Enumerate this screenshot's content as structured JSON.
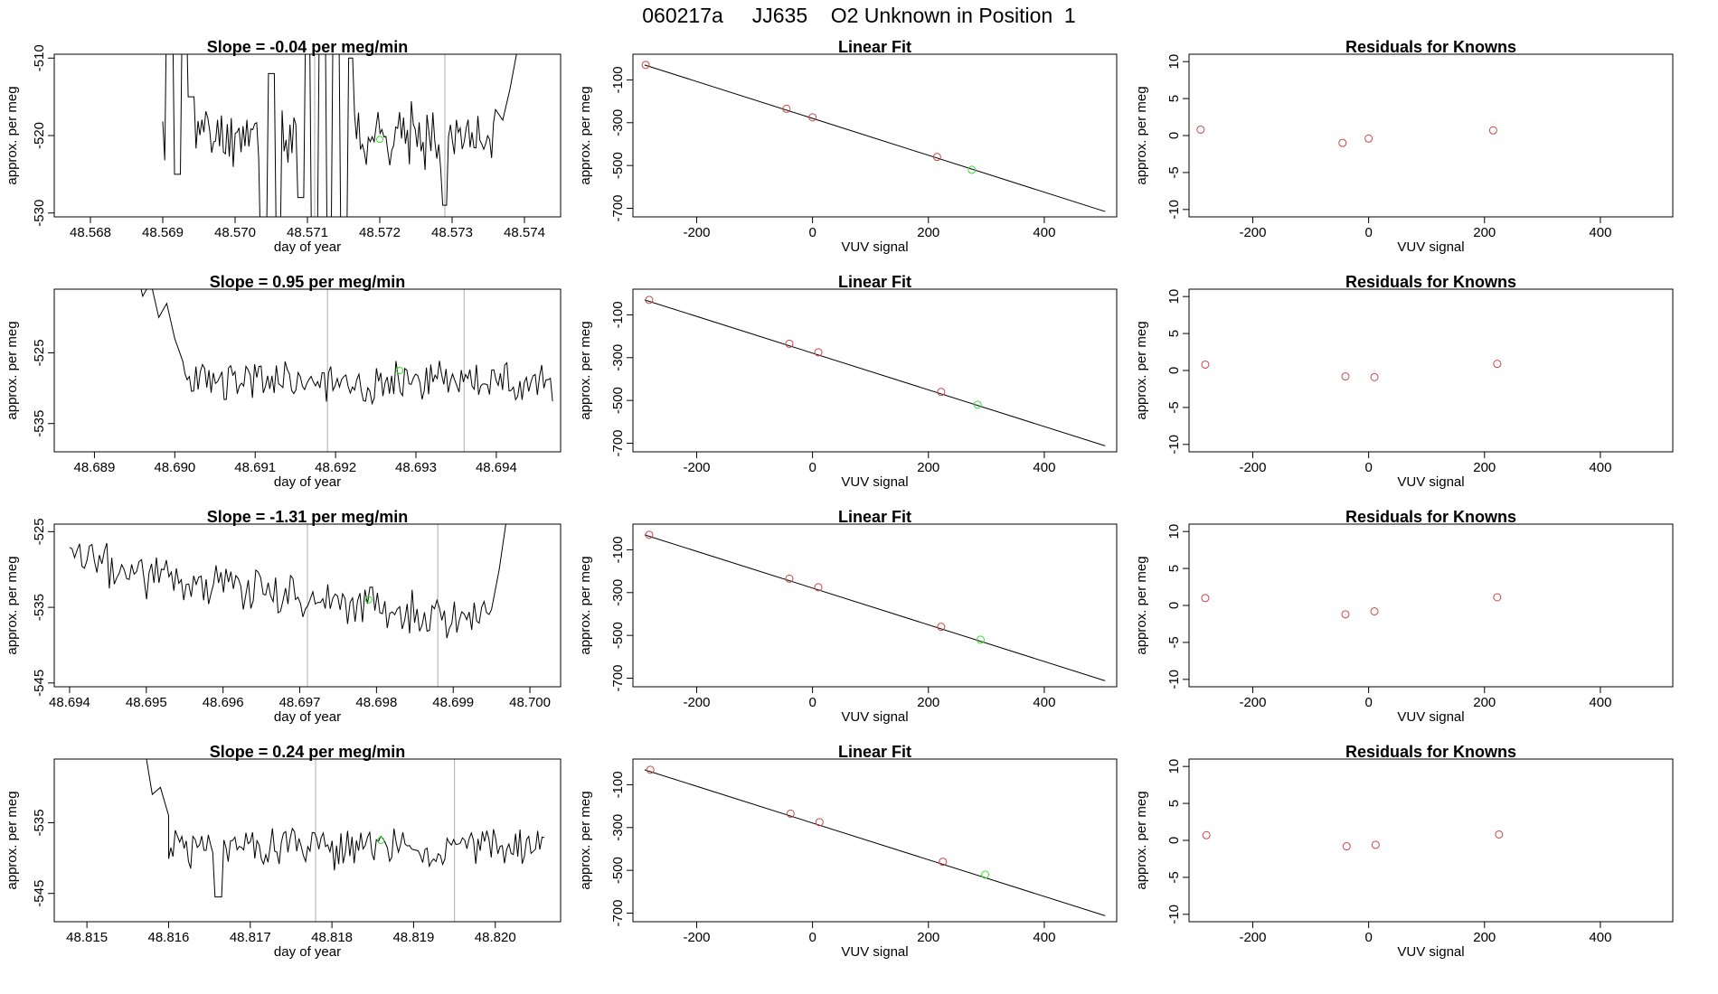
{
  "title": "060217a     JJ635    O2 Unknown in Position  1",
  "colors": {
    "line": "#000000",
    "known": "#cc4444",
    "unknown": "#33dd33",
    "vline": "#bbbbbb",
    "frame": "#000000"
  },
  "chart_data": [
    {
      "row": 1,
      "time_series": {
        "type": "line",
        "title": "Slope =  -0.04  per meg/min",
        "xlabel": "day of year",
        "ylabel": "approx. per meg",
        "xlim": [
          48.5675,
          48.5745
        ],
        "ylim": [
          -530.5,
          -509.5
        ],
        "xticks": [
          "48.568",
          "48.569",
          "48.570",
          "48.571",
          "48.572",
          "48.573",
          "48.574"
        ],
        "yticks": [
          "-510",
          "-520",
          "-530"
        ],
        "vlines": [
          48.5711,
          48.5729
        ],
        "start": 48.569,
        "end": 48.5736,
        "level": -520,
        "noise": 3,
        "seed": 11,
        "spikes": [
          [
            48.5691,
            -503
          ],
          [
            48.5692,
            -525
          ],
          [
            48.5693,
            -503
          ],
          [
            48.5694,
            -515
          ],
          [
            48.5704,
            -535
          ],
          [
            48.5705,
            -512
          ],
          [
            48.5706,
            -535
          ],
          [
            48.5709,
            -528
          ],
          [
            48.571,
            -505
          ],
          [
            48.5711,
            -535
          ],
          [
            48.5712,
            -504
          ],
          [
            48.5713,
            -535
          ],
          [
            48.5714,
            -505
          ],
          [
            48.5715,
            -535
          ],
          [
            48.5716,
            -510
          ],
          [
            48.5729,
            -529
          ]
        ],
        "tail": [
          [
            48.5737,
            -518
          ],
          [
            48.5738,
            -514
          ],
          [
            48.5739,
            -509
          ]
        ],
        "point": [
          48.572,
          -520.5
        ]
      },
      "linear_fit": {
        "type": "scatter",
        "title": "Linear Fit",
        "xlabel": "VUV signal",
        "ylabel": "approx. per meg",
        "xlim": [
          -310,
          525
        ],
        "ylim": [
          -740,
          20
        ],
        "xticks": [
          -200,
          0,
          200,
          400
        ],
        "yticks": [
          -100,
          -300,
          -500,
          -700
        ],
        "fit_line": [
          [
            -290,
            -30
          ],
          [
            505,
            -715
          ]
        ],
        "knowns": [
          [
            -288,
            -30
          ],
          [
            -45,
            -235
          ],
          [
            0,
            -275
          ],
          [
            215,
            -460
          ]
        ],
        "unknown": [
          [
            275,
            -520
          ]
        ]
      },
      "residuals": {
        "type": "scatter",
        "title": "Residuals for Knowns",
        "xlabel": "VUV signal",
        "ylabel": "approx. per meg",
        "xlim": [
          -310,
          525
        ],
        "ylim": [
          -11,
          11
        ],
        "xticks": [
          -200,
          0,
          200,
          400
        ],
        "yticks": [
          10,
          5,
          0,
          -5,
          -10
        ],
        "points": [
          [
            -290,
            0.8
          ],
          [
            -45,
            -1.0
          ],
          [
            0,
            -0.4
          ],
          [
            215,
            0.7
          ]
        ]
      }
    },
    {
      "row": 2,
      "time_series": {
        "type": "line",
        "title": "Slope =  0.95  per meg/min",
        "xlabel": "day of year",
        "ylabel": "approx. per meg",
        "xlim": [
          48.6885,
          48.6948
        ],
        "ylim": [
          -539,
          -516
        ],
        "xticks": [
          "48.689",
          "48.690",
          "48.691",
          "48.692",
          "48.693",
          "48.694"
        ],
        "yticks": [
          "-525",
          "-535"
        ],
        "vlines": [
          48.6919,
          48.6936
        ],
        "start": 48.6901,
        "end": 48.6947,
        "level": -529,
        "noise": 2.3,
        "seed": 23,
        "spikes": [],
        "tail": [],
        "head": [
          [
            48.6895,
            -512
          ],
          [
            48.6896,
            -517
          ],
          [
            48.6897,
            -515
          ],
          [
            48.6898,
            -520
          ],
          [
            48.6899,
            -518
          ],
          [
            48.69,
            -523
          ]
        ],
        "point": [
          48.6928,
          -527.5
        ]
      },
      "linear_fit": {
        "type": "scatter",
        "title": "Linear Fit",
        "xlabel": "VUV signal",
        "ylabel": "approx. per meg",
        "xlim": [
          -310,
          525
        ],
        "ylim": [
          -740,
          20
        ],
        "xticks": [
          -200,
          0,
          200,
          400
        ],
        "yticks": [
          -100,
          -300,
          -500,
          -700
        ],
        "fit_line": [
          [
            -290,
            -30
          ],
          [
            505,
            -712
          ]
        ],
        "knowns": [
          [
            -282,
            -30
          ],
          [
            -40,
            -235
          ],
          [
            10,
            -275
          ],
          [
            222,
            -460
          ]
        ],
        "unknown": [
          [
            285,
            -520
          ]
        ]
      },
      "residuals": {
        "type": "scatter",
        "title": "Residuals for Knowns",
        "xlabel": "VUV signal",
        "ylabel": "approx. per meg",
        "xlim": [
          -310,
          525
        ],
        "ylim": [
          -11,
          11
        ],
        "xticks": [
          -200,
          0,
          200,
          400
        ],
        "yticks": [
          10,
          5,
          0,
          -5,
          -10
        ],
        "points": [
          [
            -282,
            0.8
          ],
          [
            -40,
            -0.8
          ],
          [
            10,
            -0.9
          ],
          [
            222,
            0.9
          ]
        ]
      }
    },
    {
      "row": 3,
      "time_series": {
        "type": "line",
        "title": "Slope =  -1.31  per meg/min",
        "xlabel": "day of year",
        "ylabel": "approx. per meg",
        "xlim": [
          48.6938,
          48.7004
        ],
        "ylim": [
          -545.5,
          -524
        ],
        "xticks": [
          "48.694",
          "48.695",
          "48.696",
          "48.697",
          "48.698",
          "48.699",
          "48.700"
        ],
        "yticks": [
          "-525",
          "-535",
          "-545"
        ],
        "vlines": [
          48.6971,
          48.6988
        ],
        "start": 48.694,
        "end": 48.6995,
        "level": -529,
        "trend": -8,
        "noise": 2.5,
        "seed": 37,
        "spikes": [],
        "tail": [
          [
            48.6996,
            -530
          ],
          [
            48.6997,
            -523
          ]
        ],
        "point": [
          48.6979,
          -534
        ]
      },
      "linear_fit": {
        "type": "scatter",
        "title": "Linear Fit",
        "xlabel": "VUV signal",
        "ylabel": "approx. per meg",
        "xlim": [
          -310,
          525
        ],
        "ylim": [
          -740,
          20
        ],
        "xticks": [
          -200,
          0,
          200,
          400
        ],
        "yticks": [
          -100,
          -300,
          -500,
          -700
        ],
        "fit_line": [
          [
            -290,
            -30
          ],
          [
            505,
            -712
          ]
        ],
        "knowns": [
          [
            -282,
            -30
          ],
          [
            -40,
            -235
          ],
          [
            10,
            -275
          ],
          [
            222,
            -460
          ]
        ],
        "unknown": [
          [
            290,
            -520
          ]
        ]
      },
      "residuals": {
        "type": "scatter",
        "title": "Residuals for Knowns",
        "xlabel": "VUV signal",
        "ylabel": "approx. per meg",
        "xlim": [
          -310,
          525
        ],
        "ylim": [
          -11,
          11
        ],
        "xticks": [
          -200,
          0,
          200,
          400
        ],
        "yticks": [
          10,
          5,
          0,
          -5,
          -10
        ],
        "points": [
          [
            -282,
            1.0
          ],
          [
            -40,
            -1.2
          ],
          [
            10,
            -0.8
          ],
          [
            222,
            1.1
          ]
        ]
      }
    },
    {
      "row": 4,
      "time_series": {
        "type": "line",
        "title": "Slope =  0.24  per meg/min",
        "xlabel": "day of year",
        "ylabel": "approx. per meg",
        "xlim": [
          48.8146,
          48.8208
        ],
        "ylim": [
          -549,
          -526
        ],
        "xticks": [
          "48.815",
          "48.816",
          "48.817",
          "48.818",
          "48.819",
          "48.820"
        ],
        "yticks": [
          "-535",
          "-545"
        ],
        "vlines": [
          48.8178,
          48.8195
        ],
        "start": 48.816,
        "end": 48.8206,
        "level": -538.5,
        "noise": 2.3,
        "seed": 51,
        "spikes": [
          [
            48.8166,
            -545.5
          ]
        ],
        "tail": [],
        "head": [
          [
            48.8157,
            -524
          ],
          [
            48.8158,
            -531
          ],
          [
            48.8159,
            -530
          ],
          [
            48.816,
            -534
          ]
        ],
        "point": [
          48.8186,
          -537.5
        ]
      },
      "linear_fit": {
        "type": "scatter",
        "title": "Linear Fit",
        "xlabel": "VUV signal",
        "ylabel": "approx. per meg",
        "xlim": [
          -310,
          525
        ],
        "ylim": [
          -740,
          20
        ],
        "xticks": [
          -200,
          0,
          200,
          400
        ],
        "yticks": [
          -100,
          -300,
          -500,
          -700
        ],
        "fit_line": [
          [
            -290,
            -30
          ],
          [
            505,
            -712
          ]
        ],
        "knowns": [
          [
            -280,
            -30
          ],
          [
            -38,
            -235
          ],
          [
            12,
            -275
          ],
          [
            225,
            -460
          ]
        ],
        "unknown": [
          [
            298,
            -520
          ]
        ]
      },
      "residuals": {
        "type": "scatter",
        "title": "Residuals for Knowns",
        "xlabel": "VUV signal",
        "ylabel": "approx. per meg",
        "xlim": [
          -310,
          525
        ],
        "ylim": [
          -11,
          11
        ],
        "xticks": [
          -200,
          0,
          200,
          400
        ],
        "yticks": [
          10,
          5,
          0,
          -5,
          -10
        ],
        "points": [
          [
            -280,
            0.7
          ],
          [
            -38,
            -0.8
          ],
          [
            12,
            -0.6
          ],
          [
            225,
            0.8
          ]
        ]
      }
    }
  ]
}
